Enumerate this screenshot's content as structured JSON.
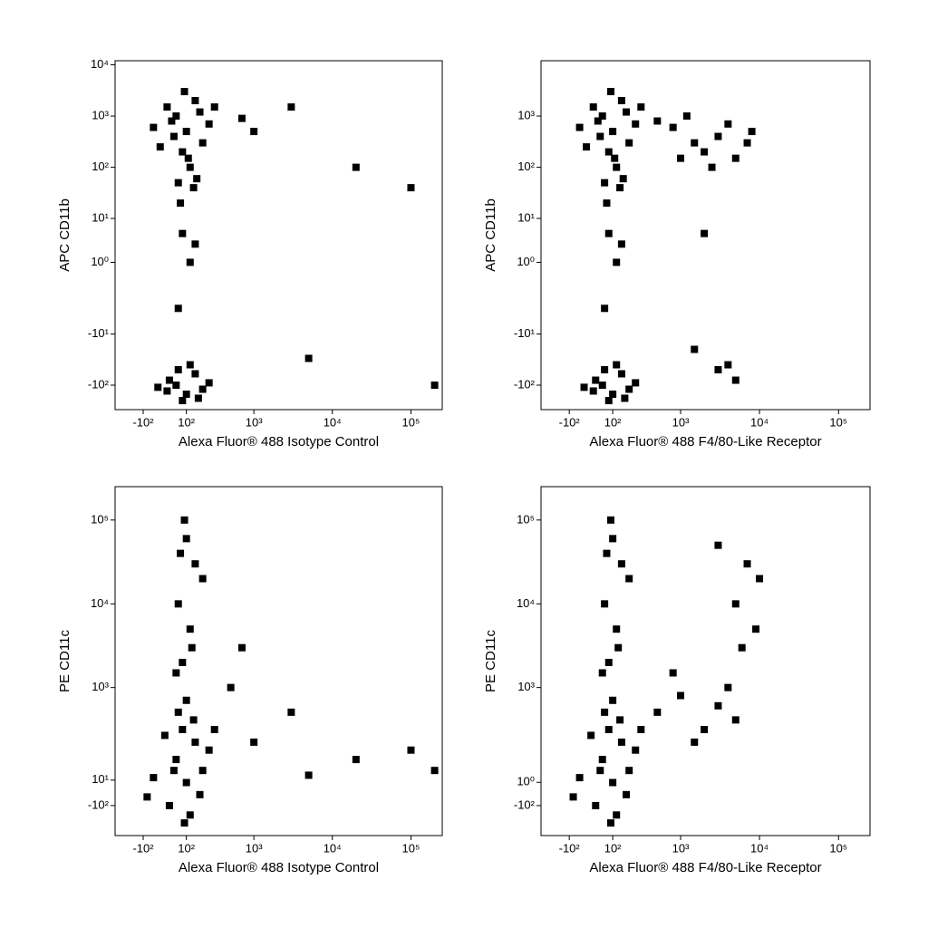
{
  "chart_data": [
    {
      "type": "scatter",
      "xlabel": "Alexa Fluor® 488 Isotype Control",
      "ylabel": "APC CD11b",
      "xlim": [
        -300,
        250000
      ],
      "ylim": [
        -300,
        12000
      ],
      "xticks": [
        {
          "value": -100,
          "label": "-10²"
        },
        {
          "value": 100,
          "label": "10²"
        },
        {
          "value": 1000,
          "label": "10³"
        },
        {
          "value": 10000,
          "label": "10⁴"
        },
        {
          "value": 100000,
          "label": "10⁵"
        }
      ],
      "yticks": [
        {
          "value": -100,
          "label": "-10²"
        },
        {
          "value": -10,
          "label": "-10¹"
        },
        {
          "value": 1,
          "label": "10⁰"
        },
        {
          "value": 10,
          "label": "10¹"
        },
        {
          "value": 100,
          "label": "10²"
        },
        {
          "value": 1000,
          "label": "10³"
        },
        {
          "value": 10000,
          "label": "10⁴"
        }
      ],
      "series": [
        {
          "color": "#000000",
          "x": [
            50,
            100,
            150,
            80,
            30,
            120,
            200,
            60,
            10,
            180,
            90,
            140,
            -50,
            250,
            70,
            110,
            40,
            160,
            -20,
            300,
            80,
            120,
            60,
            150,
            50,
            100,
            150,
            20,
            80,
            200,
            120,
            -30,
            60,
            170,
            250,
            10,
            1000,
            5000,
            20000,
            100000,
            3000,
            200000,
            700
          ],
          "y": [
            1000,
            500,
            2000,
            200,
            800,
            100,
            300,
            50,
            1500,
            1200,
            3000,
            40,
            600,
            700,
            20,
            150,
            400,
            60,
            250,
            1500,
            5,
            1,
            -3,
            3,
            -100,
            -150,
            -60,
            -80,
            -200,
            -120,
            -40,
            -110,
            -50,
            -180,
            -90,
            -130,
            500,
            -30,
            100,
            40,
            1500,
            -100,
            900
          ]
        }
      ]
    },
    {
      "type": "scatter",
      "xlabel": "Alexa Fluor® 488 F4/80-Like Receptor",
      "ylabel": "APC CD11b",
      "xlim": [
        -300,
        250000
      ],
      "ylim": [
        -300,
        12000
      ],
      "xticks": [
        {
          "value": -100,
          "label": "-10²"
        },
        {
          "value": 100,
          "label": "10²"
        },
        {
          "value": 1000,
          "label": "10³"
        },
        {
          "value": 10000,
          "label": "10⁴"
        },
        {
          "value": 100000,
          "label": "10⁵"
        }
      ],
      "yticks": [
        {
          "value": -100,
          "label": "-10²"
        },
        {
          "value": -10,
          "label": "-10¹"
        },
        {
          "value": 1,
          "label": "10⁰"
        },
        {
          "value": 10,
          "label": "10¹"
        },
        {
          "value": 100,
          "label": "10²"
        },
        {
          "value": 1000,
          "label": "10³"
        }
      ],
      "series": [
        {
          "color": "#000000",
          "x": [
            50,
            100,
            150,
            80,
            30,
            120,
            200,
            60,
            10,
            180,
            90,
            140,
            -50,
            250,
            70,
            110,
            40,
            160,
            -20,
            300,
            80,
            120,
            60,
            150,
            50,
            100,
            150,
            20,
            80,
            200,
            120,
            -30,
            60,
            170,
            250,
            10,
            500,
            800,
            1500,
            2000,
            3000,
            5000,
            7000,
            1200,
            4000,
            2500,
            8000,
            1000,
            1500,
            3000,
            5000,
            2000,
            4000
          ],
          "y": [
            1000,
            500,
            2000,
            200,
            800,
            100,
            300,
            50,
            1500,
            1200,
            3000,
            40,
            600,
            700,
            20,
            150,
            400,
            60,
            250,
            1500,
            5,
            1,
            -3,
            3,
            -100,
            -150,
            -60,
            -80,
            -200,
            -120,
            -40,
            -110,
            -50,
            -180,
            -90,
            -130,
            800,
            600,
            300,
            200,
            400,
            150,
            300,
            1000,
            700,
            100,
            500,
            150,
            -20,
            -50,
            -80,
            5,
            -40
          ]
        }
      ]
    },
    {
      "type": "scatter",
      "xlabel": "Alexa Fluor® 488 Isotype Control",
      "ylabel": "PE CD11c",
      "xlim": [
        -300,
        250000
      ],
      "ylim": [
        -300,
        250000
      ],
      "xticks": [
        {
          "value": -100,
          "label": "-10²"
        },
        {
          "value": 100,
          "label": "10²"
        },
        {
          "value": 1000,
          "label": "10³"
        },
        {
          "value": 10000,
          "label": "10⁴"
        },
        {
          "value": 100000,
          "label": "10⁵"
        }
      ],
      "yticks": [
        {
          "value": -100,
          "label": "-10²"
        },
        {
          "value": 10,
          "label": "10¹"
        },
        {
          "value": 1000,
          "label": "10³"
        },
        {
          "value": 10000,
          "label": "10⁴"
        },
        {
          "value": 100000,
          "label": "10⁵"
        }
      ],
      "series": [
        {
          "color": "#000000",
          "x": [
            50,
            100,
            150,
            20,
            80,
            200,
            -50,
            120,
            60,
            250,
            0,
            180,
            100,
            -80,
            40,
            140,
            90,
            300,
            80,
            120,
            60,
            150,
            100,
            50,
            200,
            90,
            130,
            70,
            500,
            1000,
            3000,
            20000,
            100000,
            200000,
            700,
            5000
          ],
          "y": [
            100,
            0,
            200,
            -100,
            300,
            50,
            20,
            -150,
            500,
            150,
            250,
            -50,
            700,
            -60,
            50,
            400,
            -200,
            300,
            2000,
            5000,
            10000,
            30000,
            60000,
            1500,
            20000,
            100000,
            3000,
            40000,
            1000,
            200,
            500,
            100,
            150,
            50,
            3000,
            30
          ]
        }
      ]
    },
    {
      "type": "scatter",
      "xlabel": "Alexa Fluor® 488 F4/80-Like Receptor",
      "ylabel": "PE CD11c",
      "xlim": [
        -300,
        250000
      ],
      "ylim": [
        -300,
        250000
      ],
      "xticks": [
        {
          "value": -100,
          "label": "-10²"
        },
        {
          "value": 100,
          "label": "10²"
        },
        {
          "value": 1000,
          "label": "10³"
        },
        {
          "value": 10000,
          "label": "10⁴"
        },
        {
          "value": 100000,
          "label": "10⁵"
        }
      ],
      "yticks": [
        {
          "value": -100,
          "label": "-10²"
        },
        {
          "value": 1,
          "label": "10⁰"
        },
        {
          "value": 1000,
          "label": "10³"
        },
        {
          "value": 10000,
          "label": "10⁴"
        },
        {
          "value": 100000,
          "label": "10⁵"
        }
      ],
      "series": [
        {
          "color": "#000000",
          "x": [
            50,
            100,
            150,
            20,
            80,
            200,
            -50,
            120,
            60,
            250,
            0,
            180,
            100,
            -80,
            40,
            140,
            90,
            300,
            80,
            120,
            60,
            150,
            100,
            50,
            200,
            90,
            130,
            70,
            500,
            1000,
            2000,
            3000,
            5000,
            800,
            1500,
            4000,
            7000,
            5000,
            9000,
            3000,
            6000,
            10000
          ],
          "y": [
            100,
            0,
            200,
            -100,
            300,
            50,
            20,
            -150,
            500,
            150,
            250,
            -50,
            700,
            -60,
            50,
            400,
            -200,
            300,
            2000,
            5000,
            10000,
            30000,
            60000,
            1500,
            20000,
            100000,
            3000,
            40000,
            500,
            800,
            300,
            600,
            400,
            1500,
            200,
            1000,
            30000,
            10000,
            5000,
            50000,
            3000,
            20000
          ]
        }
      ]
    }
  ]
}
